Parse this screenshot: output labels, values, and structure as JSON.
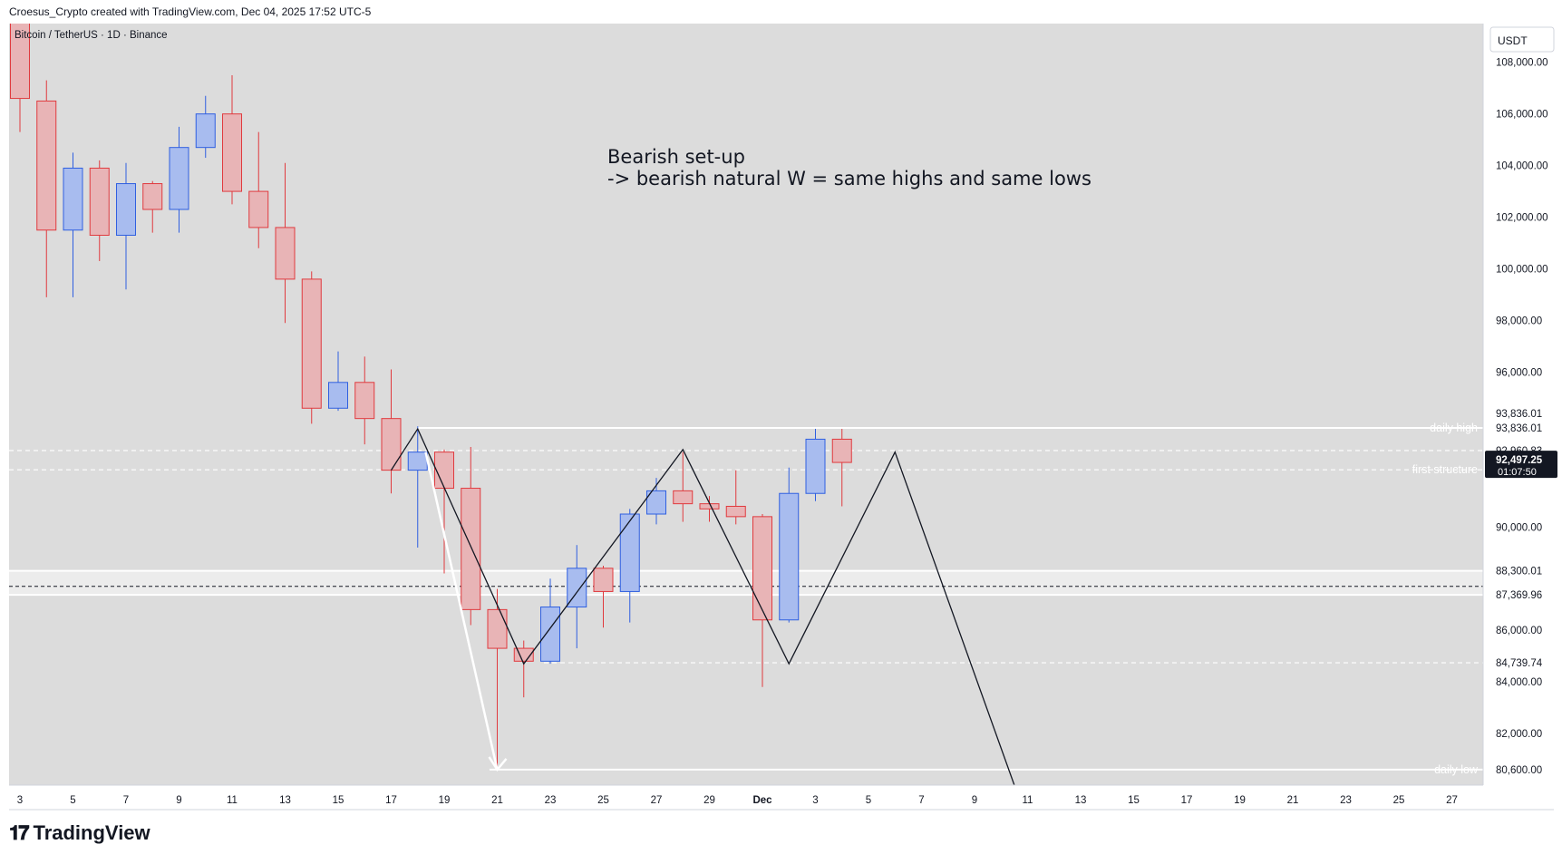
{
  "header": "Croesus_Crypto created with TradingView.com, Dec 04, 2025 17:52 UTC-5",
  "symbol_label": "Bitcoin / TetherUS · 1D · Binance",
  "currency_button": "USDT",
  "footer_logo": "TradingView",
  "colors": {
    "up_fill": "#a8bcef",
    "up_edge": "#2f5fe0",
    "down_fill": "#e8b4b6",
    "down_edge": "#e03a3e",
    "plot_bg": "#dcdcdc"
  },
  "chart_data": {
    "type": "candlestick",
    "ylim": [
      80000,
      109500
    ],
    "y_ticks": [
      "108,000.00",
      "106,000.00",
      "104,000.00",
      "102,000.00",
      "100,000.00",
      "98,000.00",
      "96,000.00",
      "90,000.00",
      "86,000.00",
      "84,000.00",
      "82,000.00"
    ],
    "x_ticks": [
      {
        "label": "3",
        "day": 3
      },
      {
        "label": "5",
        "day": 5
      },
      {
        "label": "7",
        "day": 7
      },
      {
        "label": "9",
        "day": 9
      },
      {
        "label": "11",
        "day": 11
      },
      {
        "label": "13",
        "day": 13
      },
      {
        "label": "15",
        "day": 15
      },
      {
        "label": "17",
        "day": 17
      },
      {
        "label": "19",
        "day": 19
      },
      {
        "label": "21",
        "day": 21
      },
      {
        "label": "23",
        "day": 23
      },
      {
        "label": "25",
        "day": 25
      },
      {
        "label": "27",
        "day": 27
      },
      {
        "label": "29",
        "day": 29
      },
      {
        "label": "Dec",
        "day": 31
      },
      {
        "label": "3",
        "day": 33
      },
      {
        "label": "5",
        "day": 35
      },
      {
        "label": "7",
        "day": 37
      },
      {
        "label": "9",
        "day": 39
      },
      {
        "label": "11",
        "day": 41
      },
      {
        "label": "13",
        "day": 43
      },
      {
        "label": "15",
        "day": 45
      },
      {
        "label": "17",
        "day": 47
      },
      {
        "label": "19",
        "day": 49
      },
      {
        "label": "21",
        "day": 51
      },
      {
        "label": "23",
        "day": 53
      },
      {
        "label": "25",
        "day": 55
      },
      {
        "label": "27",
        "day": 57
      }
    ],
    "candles": [
      {
        "day": 3,
        "o": 110500,
        "h": 111000,
        "l": 105300,
        "c": 106600
      },
      {
        "day": 4,
        "o": 106500,
        "h": 107300,
        "l": 98900,
        "c": 101500
      },
      {
        "day": 5,
        "o": 101500,
        "h": 104500,
        "l": 98900,
        "c": 103900
      },
      {
        "day": 6,
        "o": 103900,
        "h": 104200,
        "l": 100300,
        "c": 101300
      },
      {
        "day": 7,
        "o": 101300,
        "h": 104100,
        "l": 99200,
        "c": 103300
      },
      {
        "day": 8,
        "o": 103300,
        "h": 103400,
        "l": 101400,
        "c": 102300
      },
      {
        "day": 9,
        "o": 102300,
        "h": 105500,
        "l": 101400,
        "c": 104700
      },
      {
        "day": 10,
        "o": 104700,
        "h": 106700,
        "l": 104300,
        "c": 106000
      },
      {
        "day": 11,
        "o": 106000,
        "h": 107500,
        "l": 102500,
        "c": 103000
      },
      {
        "day": 12,
        "o": 103000,
        "h": 105300,
        "l": 100800,
        "c": 101600
      },
      {
        "day": 13,
        "o": 101600,
        "h": 104100,
        "l": 97900,
        "c": 99600
      },
      {
        "day": 14,
        "o": 99600,
        "h": 99900,
        "l": 94000,
        "c": 94600
      },
      {
        "day": 15,
        "o": 94600,
        "h": 96800,
        "l": 94500,
        "c": 95600
      },
      {
        "day": 16,
        "o": 95600,
        "h": 96600,
        "l": 93200,
        "c": 94200
      },
      {
        "day": 17,
        "o": 94200,
        "h": 96100,
        "l": 91300,
        "c": 92200
      },
      {
        "day": 18,
        "o": 92200,
        "h": 93900,
        "l": 89200,
        "c": 92900
      },
      {
        "day": 19,
        "o": 92900,
        "h": 93000,
        "l": 88200,
        "c": 91500
      },
      {
        "day": 20,
        "o": 91500,
        "h": 93100,
        "l": 86200,
        "c": 86800
      },
      {
        "day": 21,
        "o": 86800,
        "h": 87600,
        "l": 80600,
        "c": 85300
      },
      {
        "day": 22,
        "o": 85300,
        "h": 85600,
        "l": 83400,
        "c": 84800
      },
      {
        "day": 23,
        "o": 84800,
        "h": 88000,
        "l": 84700,
        "c": 86900
      },
      {
        "day": 24,
        "o": 86900,
        "h": 89300,
        "l": 85300,
        "c": 88400
      },
      {
        "day": 25,
        "o": 88400,
        "h": 88500,
        "l": 86100,
        "c": 87500
      },
      {
        "day": 26,
        "o": 87500,
        "h": 90700,
        "l": 86300,
        "c": 90500
      },
      {
        "day": 27,
        "o": 90500,
        "h": 91900,
        "l": 90100,
        "c": 91400
      },
      {
        "day": 28,
        "o": 91400,
        "h": 92900,
        "l": 90200,
        "c": 90900
      },
      {
        "day": 29,
        "o": 90900,
        "h": 91200,
        "l": 90200,
        "c": 90700
      },
      {
        "day": 30,
        "o": 90800,
        "h": 92200,
        "l": 90100,
        "c": 90400
      },
      {
        "day": 31,
        "o": 90400,
        "h": 90500,
        "l": 83800,
        "c": 86400
      },
      {
        "day": 32,
        "o": 86400,
        "h": 92300,
        "l": 86300,
        "c": 91300
      },
      {
        "day": 33,
        "o": 91300,
        "h": 93800,
        "l": 91000,
        "c": 93400
      },
      {
        "day": 34,
        "o": 93400,
        "h": 93800,
        "l": 90800,
        "c": 92500
      }
    ],
    "levels": [
      {
        "name": "daily high",
        "price": 93836.01,
        "style": "solid-white",
        "label": "daily high"
      },
      {
        "name": "first structure",
        "price": 92960.83,
        "style": "dashed-white",
        "label": ""
      },
      {
        "name": "first structure low",
        "price": 92215.14,
        "style": "dashed-white",
        "label": "first structure"
      },
      {
        "name": "zone top",
        "price": 88300.01,
        "style": "white-band",
        "label": ""
      },
      {
        "name": "mid",
        "price": 87700,
        "style": "dashed-black",
        "label": ""
      },
      {
        "name": "zone bottom",
        "price": 87369.96,
        "style": "white-band",
        "label": ""
      },
      {
        "name": "low level",
        "price": 84739.74,
        "style": "dashed-white",
        "label": ""
      },
      {
        "name": "daily low",
        "price": 80600,
        "style": "solid-white",
        "label": "daily low"
      }
    ],
    "price_labels": [
      {
        "text": "93,836.01",
        "price": 93836.01,
        "offset": -16
      },
      {
        "text": "93,836.01",
        "price": 93836.01,
        "offset": 0
      },
      {
        "text": "92,960.83",
        "price": 92960.83,
        "offset": 0
      },
      {
        "text": "92,215.14",
        "price": 92215.14,
        "offset": 0
      },
      {
        "text": "88,300.01",
        "price": 88300.01,
        "offset": 0
      },
      {
        "text": "87,369.96",
        "price": 87369.96,
        "offset": 0
      },
      {
        "text": "84,739.74",
        "price": 84739.74,
        "offset": 0
      },
      {
        "text": "80,600.00",
        "price": 80600,
        "offset": 0
      }
    ],
    "current_price": {
      "text": "92,497.25",
      "timer": "01:07:50",
      "price": 92497.25
    },
    "pattern_path": [
      {
        "day": 17,
        "price": 92200
      },
      {
        "day": 18,
        "price": 93800
      },
      {
        "day": 22,
        "price": 84700
      },
      {
        "day": 28,
        "price": 93000
      },
      {
        "day": 32,
        "price": 84700
      },
      {
        "day": 36,
        "price": 92900
      },
      {
        "day": 40.5,
        "price": 80000
      }
    ],
    "arrow": {
      "from_day": 18.3,
      "from_price": 92900,
      "to_day": 21,
      "to_price": 80600
    },
    "annotation": {
      "line1": "Bearish set-up",
      "line2": "-> bearish natural W = same highs and same lows"
    }
  }
}
